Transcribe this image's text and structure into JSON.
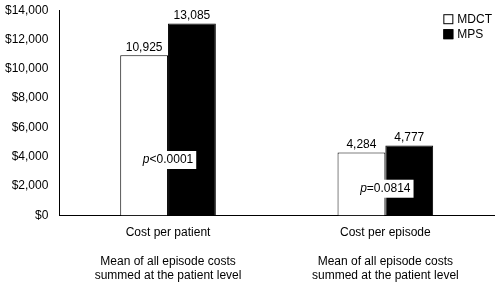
{
  "chart_data": {
    "type": "bar",
    "categories": [
      "Cost per patient",
      "Cost per episode"
    ],
    "category_notes": [
      "Mean of all episode costs summed at the patient level",
      "Mean of all episode costs summed at the patient level"
    ],
    "series": [
      {
        "name": "MDCT",
        "color": "#ffffff",
        "values": [
          10925,
          4284
        ],
        "value_labels": [
          "10,925",
          "4,284"
        ]
      },
      {
        "name": "MPS",
        "color": "#000000",
        "values": [
          13085,
          4777
        ],
        "value_labels": [
          "13,085",
          "4,777"
        ]
      }
    ],
    "annotations": [
      {
        "text": "p<0.0001",
        "category": "Cost per patient"
      },
      {
        "text": "p=0.0814",
        "category": "Cost per episode"
      }
    ],
    "ylim": [
      0,
      14000
    ],
    "yticks": [
      {
        "value": 0,
        "label": "$0"
      },
      {
        "value": 2000,
        "label": "$2,000"
      },
      {
        "value": 4000,
        "label": "$4,000"
      },
      {
        "value": 6000,
        "label": "$6,000"
      },
      {
        "value": 8000,
        "label": "$8,000"
      },
      {
        "value": 10000,
        "label": "$10,000"
      },
      {
        "value": 12000,
        "label": "$12,000"
      },
      {
        "value": 14000,
        "label": "$14,000"
      }
    ],
    "grid": false,
    "legend": "upper right",
    "data_labels": true
  }
}
